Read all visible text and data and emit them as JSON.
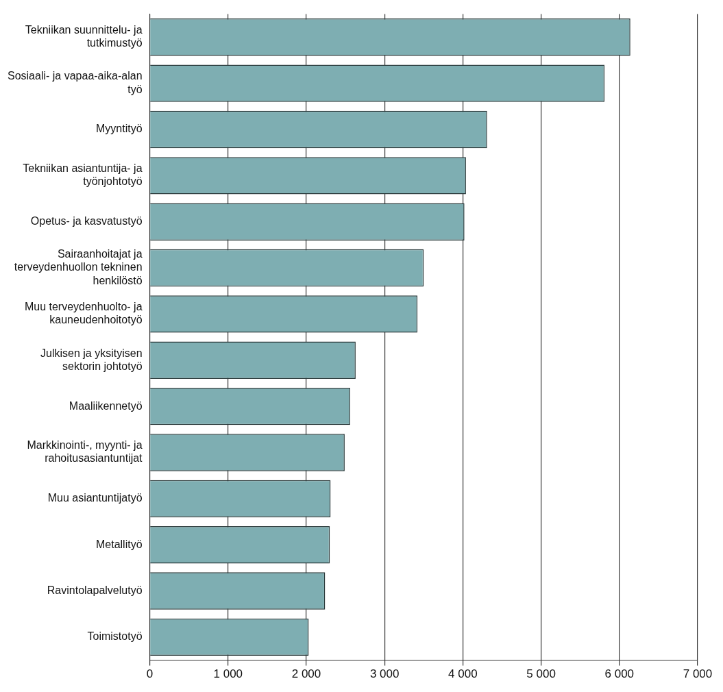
{
  "chart_data": {
    "type": "bar",
    "orientation": "horizontal",
    "categories": [
      "Tekniikan suunnittelu- ja tutkimustyö",
      "Sosiaali- ja vapaa-aika-alan työ",
      "Myyntityö",
      "Tekniikan asiantuntija- ja työnjohtotyö",
      "Opetus- ja kasvatustyö",
      "Sairaanhoitajat ja terveydenhuollon tekninen henkilöstö",
      "Muu terveydenhuolto- ja kauneudenhoitotyö",
      "Julkisen ja yksityisen sektorin johtotyö",
      "Maaliikennetyö",
      "Markkinointi-, myynti- ja rahoitusasiantuntijat",
      "Muu asiantuntijatyö",
      "Metallityö",
      "Ravintolapalvelutyö",
      "Toimistotyö"
    ],
    "values": [
      6140,
      5810,
      4310,
      4040,
      4020,
      3500,
      3420,
      2630,
      2560,
      2490,
      2310,
      2300,
      2240,
      2030
    ],
    "color": "#7eaeb2",
    "xlim": [
      0,
      7000
    ],
    "xticks": [
      0,
      {
        "value": 1000,
        "label": "1 000"
      },
      {
        "value": 2000,
        "label": "2 000"
      },
      {
        "value": 3000,
        "label": "3 000"
      },
      {
        "value": 4000,
        "label": "4 000"
      },
      {
        "value": 5000,
        "label": "5 000"
      },
      {
        "value": 6000,
        "label": "6 000"
      },
      {
        "value": 7000,
        "label": "7 000"
      }
    ],
    "grid": "x"
  }
}
